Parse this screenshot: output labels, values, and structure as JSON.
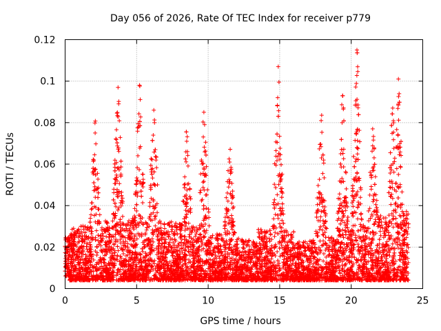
{
  "chart_data": {
    "type": "scatter",
    "title": "Day 056 of 2026, Rate Of TEC Index for receiver p779",
    "xlabel": "GPS time / hours",
    "ylabel": "ROTI / TECUs",
    "xlim": [
      0,
      25
    ],
    "ylim": [
      0,
      0.12
    ],
    "x_ticks": [
      0,
      5,
      10,
      15,
      20,
      25
    ],
    "x_tick_labels": [
      "0",
      "5",
      "10",
      "15",
      "20",
      "25"
    ],
    "y_ticks": [
      0,
      0.02,
      0.04,
      0.06,
      0.08,
      0.1,
      0.12
    ],
    "y_tick_labels": [
      "0",
      "0.02",
      "0.04",
      "0.06",
      "0.08",
      "0.1",
      "0.12"
    ],
    "grid": true,
    "marker": "+",
    "color": "#ff0000",
    "data_range_hours": [
      0,
      24
    ],
    "baseline_min": 0.004,
    "peaks": [
      {
        "x": 2.1,
        "y": 0.075
      },
      {
        "x": 3.7,
        "y": 0.097
      },
      {
        "x": 5.2,
        "y": 0.098
      },
      {
        "x": 6.2,
        "y": 0.086
      },
      {
        "x": 8.5,
        "y": 0.071
      },
      {
        "x": 9.7,
        "y": 0.085
      },
      {
        "x": 11.5,
        "y": 0.061
      },
      {
        "x": 14.9,
        "y": 0.107
      },
      {
        "x": 17.9,
        "y": 0.081
      },
      {
        "x": 19.4,
        "y": 0.093
      },
      {
        "x": 20.4,
        "y": 0.115
      },
      {
        "x": 21.5,
        "y": 0.077
      },
      {
        "x": 22.9,
        "y": 0.087
      },
      {
        "x": 23.3,
        "y": 0.101
      }
    ]
  }
}
